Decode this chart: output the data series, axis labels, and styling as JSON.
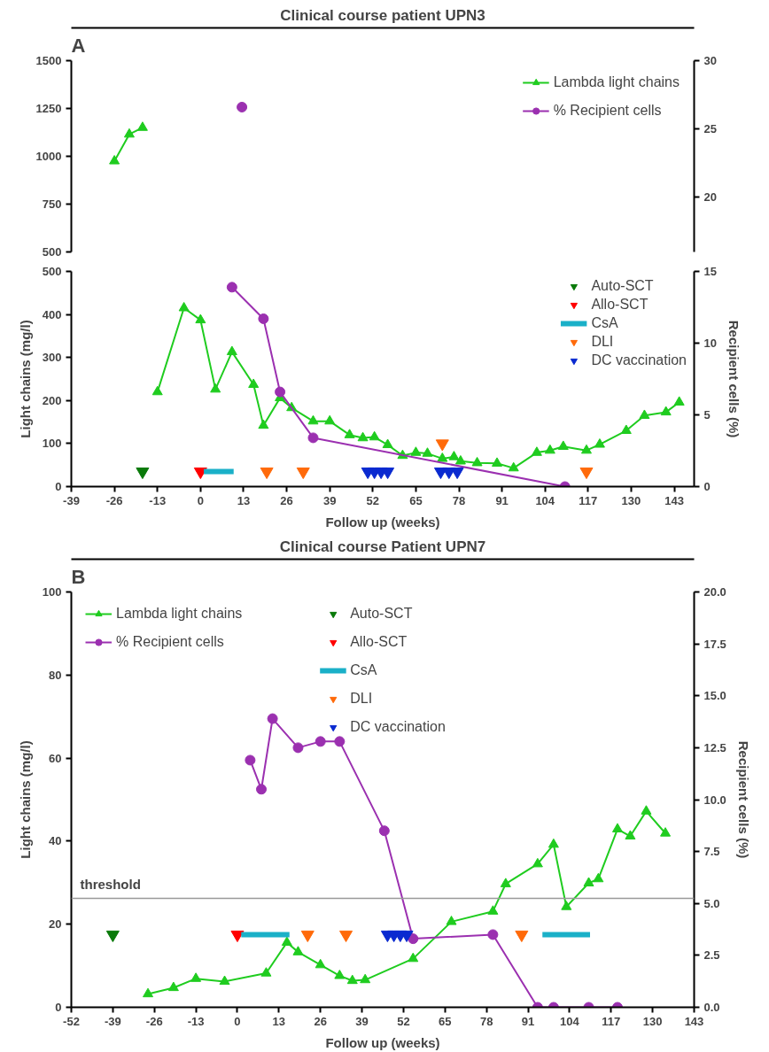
{
  "chart_data": [
    {
      "type": "line",
      "title": "Clinical course patient UPN3",
      "annotations": [
        "A"
      ],
      "tick_labels": "y",
      "xlim": [
        -39,
        149
      ],
      "xticks": [
        -39,
        -26,
        -13,
        0,
        13,
        26,
        39,
        52,
        65,
        78,
        91,
        104,
        117,
        130,
        143
      ],
      "ylim": [
        500,
        1500
      ],
      "yticks": [
        500,
        750,
        1000,
        1250,
        1500
      ],
      "y2lim": [
        16,
        30
      ],
      "y2ticks": [
        20,
        25,
        30
      ],
      "grid": false,
      "legend": "top right",
      "series": [
        {
          "name": "Lambda light chains",
          "marker": "triangle",
          "color": "#1fcc1f",
          "x": [
            -26,
            -21.5,
            -17.5
          ],
          "values": [
            975,
            1115,
            1150
          ]
        },
        {
          "name": "% Recipient cells",
          "marker": "circle",
          "color": "#9b30b0",
          "axis": "y2",
          "x": [
            12.5
          ],
          "values": [
            26.6
          ]
        }
      ]
    },
    {
      "type": "line",
      "xlabel": "Follow up (weeks)",
      "ylabel": "Light chains (mg/l)",
      "y2label": "Recipient cells (%)",
      "xlim": [
        -39,
        149
      ],
      "xticks": [
        -39,
        -26,
        -13,
        0,
        13,
        26,
        39,
        52,
        65,
        78,
        91,
        104,
        117,
        130,
        143
      ],
      "ylim": [
        0,
        500
      ],
      "yticks": [
        0,
        100,
        200,
        300,
        400,
        500
      ],
      "y2lim": [
        0,
        15
      ],
      "y2ticks": [
        0,
        5,
        10,
        15
      ],
      "grid": false,
      "legend": "top right",
      "series": [
        {
          "marker": "triangle",
          "color": "#1fcc1f",
          "x": [
            -13,
            -5,
            0,
            4.5,
            9.5,
            16,
            19,
            24,
            27.5,
            34,
            39,
            45,
            49,
            52.5,
            56.5,
            61,
            65,
            68.5,
            73,
            76.5,
            78.5,
            83.5,
            89.5,
            94.5,
            101.5,
            105.5,
            109.5,
            116.5,
            120.5,
            128.5,
            134,
            140.5,
            144.5
          ],
          "values": [
            220,
            415,
            387,
            226,
            313,
            237,
            142,
            206,
            183,
            152,
            152,
            120,
            113,
            115,
            97,
            72,
            79,
            77,
            65,
            69,
            59,
            55,
            54,
            43,
            79,
            84,
            93,
            84,
            98,
            130,
            165,
            173,
            196
          ]
        },
        {
          "marker": "circle",
          "color": "#9b30b0",
          "axis": "y2",
          "x": [
            9.5,
            19,
            24,
            34,
            110
          ],
          "values": [
            13.9,
            11.7,
            6.6,
            3.4,
            0
          ]
        },
        {
          "name": "Auto-SCT",
          "type": "scatter",
          "marker": "triangle",
          "color": "#0a7a0a",
          "x": [
            -17.5
          ],
          "values": [
            35
          ]
        },
        {
          "name": "Allo-SCT",
          "type": "scatter",
          "marker": "triangle",
          "color": "#ff0000",
          "x": [
            0
          ],
          "values": [
            35
          ]
        },
        {
          "name": "CsA",
          "marker": "none",
          "color": "#1ab0c8",
          "x": [
            1,
            10
          ],
          "values": [
            35,
            35
          ]
        },
        {
          "name": "DLI",
          "type": "scatter",
          "marker": "triangle",
          "color": "#ff6a0a",
          "x": [
            20,
            31,
            73,
            116.5
          ],
          "values": [
            35,
            35,
            100,
            35
          ]
        },
        {
          "name": "DC vaccination",
          "type": "scatter",
          "marker": "triangle",
          "color": "#0a2ad0",
          "x": [
            50.5,
            52.5,
            54.5,
            56.5,
            72.5,
            75,
            77.5
          ],
          "values": [
            35,
            35,
            35,
            35,
            35,
            35,
            35
          ]
        }
      ]
    },
    {
      "type": "line",
      "title": "Clinical course Patient UPN7",
      "annotations": [
        "B"
      ],
      "xlabel": "Follow up (weeks)",
      "ylabel": "Light chains (mg/l)",
      "y2label": "Recipient cells (%)",
      "xlim": [
        -52,
        143
      ],
      "xticks": [
        -52,
        -39,
        -26,
        -13,
        0,
        13,
        26,
        39,
        52,
        65,
        78,
        91,
        104,
        117,
        130,
        143
      ],
      "ylim": [
        0,
        100
      ],
      "yticks": [
        0,
        20,
        40,
        60,
        80,
        100
      ],
      "y2lim": [
        0,
        20
      ],
      "y2ticks": [
        {
          "value": 0,
          "label": "0.0"
        },
        {
          "value": 2.5,
          "label": "2.5"
        },
        {
          "value": 5,
          "label": "5.0"
        },
        {
          "value": 7.5,
          "label": "7.5"
        },
        {
          "value": 10,
          "label": "10.0"
        },
        {
          "value": 12.5,
          "label": "12.5"
        },
        {
          "value": 15,
          "label": "15.0"
        },
        {
          "value": 17.5,
          "label": "17.5"
        },
        {
          "value": 20,
          "label": "20.0"
        }
      ],
      "grid": false,
      "legend": "top",
      "ref_lines": [
        {
          "axis": "y",
          "value": 26.2,
          "label": "threshold",
          "color": "#999999"
        }
      ],
      "series": [
        {
          "name": "Lambda light chains",
          "marker": "triangle",
          "color": "#1fcc1f",
          "x": [
            -28,
            -20,
            -13,
            -4,
            9,
            15.5,
            19,
            26,
            32,
            36,
            40,
            55,
            67,
            80,
            84,
            94,
            99,
            103,
            110,
            113,
            119,
            123,
            128,
            134
          ],
          "values": [
            3.2,
            4.7,
            6.9,
            6.2,
            8.2,
            15.6,
            13.3,
            10.2,
            7.6,
            6.4,
            6.6,
            11.7,
            20.6,
            23.1,
            29.7,
            34.5,
            39.2,
            24.2,
            29.9,
            30.9,
            42.9,
            41.2,
            47.2,
            41.9
          ]
        },
        {
          "name": "% Recipient cells",
          "marker": "circle",
          "color": "#9b30b0",
          "axis": "y2",
          "x": [
            4,
            7.5,
            11,
            19,
            26,
            32,
            46,
            55,
            80,
            94,
            99,
            110,
            119
          ],
          "values": [
            11.9,
            10.5,
            13.9,
            12.5,
            12.8,
            12.8,
            8.5,
            3.3,
            3.5,
            0,
            0,
            0,
            0
          ]
        },
        {
          "name": "Auto-SCT",
          "type": "scatter",
          "marker": "triangle",
          "color": "#0a7a0a",
          "x": [
            -39
          ],
          "values": [
            17.5
          ]
        },
        {
          "name": "Allo-SCT",
          "type": "scatter",
          "marker": "triangle",
          "color": "#ff0000",
          "x": [
            0
          ],
          "values": [
            17.5
          ]
        },
        {
          "name": "CsA",
          "marker": "none",
          "color": "#1ab0c8",
          "x": [
            1.2,
            16.3,
            50,
            95.5,
            110.4
          ],
          "values": [
            17.5,
            17.5,
            null,
            17.5,
            17.5
          ]
        },
        {
          "name": "DLI",
          "type": "scatter",
          "marker": "triangle",
          "color": "#ff6a0a",
          "x": [
            22,
            34,
            89
          ],
          "values": [
            17.5,
            17.5,
            17.5
          ]
        },
        {
          "name": "DC vaccination",
          "type": "scatter",
          "marker": "triangle",
          "color": "#0a2ad0",
          "x": [
            47,
            49,
            51,
            53
          ],
          "values": [
            17.5,
            17.5,
            17.5,
            17.5
          ]
        }
      ]
    }
  ]
}
